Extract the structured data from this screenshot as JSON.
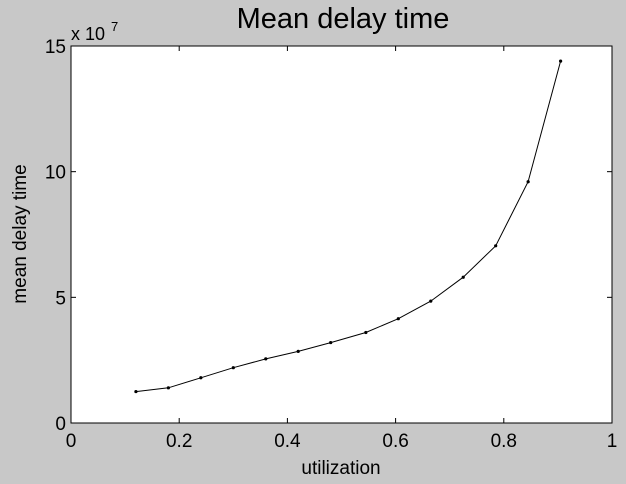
{
  "chart_data": {
    "type": "line",
    "title": "Mean delay time",
    "xlabel": "utilization",
    "ylabel": "mean delay time",
    "y_exponent_label": "x 10",
    "y_exponent_power": "7",
    "xlim": [
      0,
      1
    ],
    "ylim": [
      0,
      15
    ],
    "x_ticks": [
      0,
      0.2,
      0.4,
      0.6,
      0.8,
      1
    ],
    "x_tick_labels": [
      "0",
      "0.2",
      "0.4",
      "0.6",
      "0.8",
      "1"
    ],
    "y_ticks": [
      0,
      5,
      10,
      15
    ],
    "y_tick_labels": [
      "0",
      "5",
      "10",
      "15"
    ],
    "grid": false,
    "series": [
      {
        "x": [
          0.12,
          0.18,
          0.24,
          0.3,
          0.36,
          0.42,
          0.48,
          0.545,
          0.605,
          0.665,
          0.725,
          0.785,
          0.845,
          0.905
        ],
        "y": [
          1.25,
          1.4,
          1.8,
          2.2,
          2.55,
          2.85,
          3.2,
          3.6,
          4.15,
          4.85,
          5.8,
          7.05,
          9.6,
          14.4
        ],
        "color": "#000000"
      }
    ]
  },
  "colors": {
    "figure_background": "#c8c8c8",
    "axes_background": "#ffffff",
    "line": "#000000"
  }
}
